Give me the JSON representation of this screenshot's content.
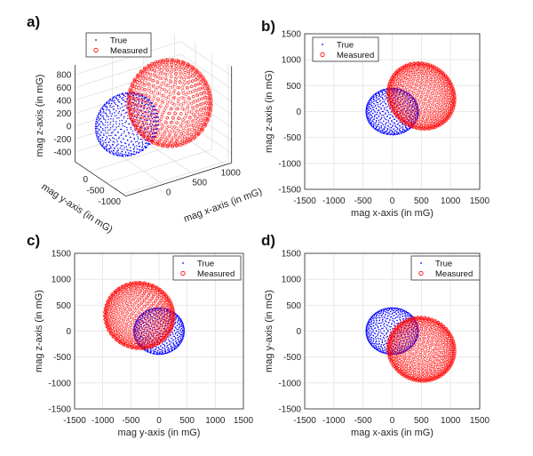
{
  "chart_data": [
    {
      "panel": "a)",
      "type": "scatter",
      "projection": "3d",
      "xlabel": "mag x-axis (in mG)",
      "ylabel": "mag y-axis (in mG)",
      "zlabel": "mag z-axis (in mG)",
      "xticks": [
        0,
        500,
        1000
      ],
      "yticks": [
        0,
        -500,
        -1000
      ],
      "zticks": [
        800,
        600,
        400,
        200,
        0,
        -200,
        -400
      ],
      "legend": [
        "True",
        "Measured"
      ],
      "legend_position": "top-left",
      "grid": true
    },
    {
      "panel": "b)",
      "type": "scatter",
      "xlabel": "mag x-axis (in mG)",
      "ylabel": "mag z-axis (in mG)",
      "xlim": [
        -1500,
        1500
      ],
      "ylim": [
        -1500,
        1500
      ],
      "xticks": [
        -1500,
        -1000,
        -500,
        0,
        500,
        1000,
        1500
      ],
      "yticks": [
        1500,
        1000,
        500,
        0,
        -500,
        -1000,
        -1500
      ],
      "axes": [
        "x",
        "z"
      ],
      "legend": [
        "True",
        "Measured"
      ],
      "legend_position": "top-left",
      "grid": true
    },
    {
      "panel": "c)",
      "type": "scatter",
      "xlabel": "mag y-axis (in mG)",
      "ylabel": "mag z-axis (in mG)",
      "xlim": [
        -1500,
        1500
      ],
      "ylim": [
        -1500,
        1500
      ],
      "xticks": [
        -1500,
        -1000,
        -500,
        0,
        500,
        1000,
        1500
      ],
      "yticks": [
        1500,
        1000,
        500,
        0,
        -500,
        -1000,
        -1500
      ],
      "axes": [
        "y",
        "z"
      ],
      "legend": [
        "True",
        "Measured"
      ],
      "legend_position": "top-right",
      "grid": true
    },
    {
      "panel": "d)",
      "type": "scatter",
      "xlabel": "mag x-axis (in mG)",
      "ylabel": "mag y-axis (in mG)",
      "xlim": [
        -1500,
        1500
      ],
      "ylim": [
        -1500,
        1500
      ],
      "xticks": [
        -1500,
        -1000,
        -500,
        0,
        500,
        1000,
        1500
      ],
      "yticks": [
        1500,
        1000,
        500,
        0,
        -500,
        -1000,
        -1500
      ],
      "axes": [
        "x",
        "y"
      ],
      "legend": [
        "True",
        "Measured"
      ],
      "legend_position": "top-right",
      "grid": true
    }
  ],
  "series": [
    {
      "name": "True",
      "marker": "dot",
      "color": "#0000ff",
      "shape": "sphere",
      "center": [
        0,
        0,
        0
      ],
      "radii": [
        450,
        450,
        450
      ]
    },
    {
      "name": "Measured",
      "marker": "circle",
      "color": "#ff0000",
      "shape": "ellipsoid",
      "center": [
        500,
        -350,
        300
      ],
      "radii": [
        560,
        620,
        650
      ]
    }
  ]
}
